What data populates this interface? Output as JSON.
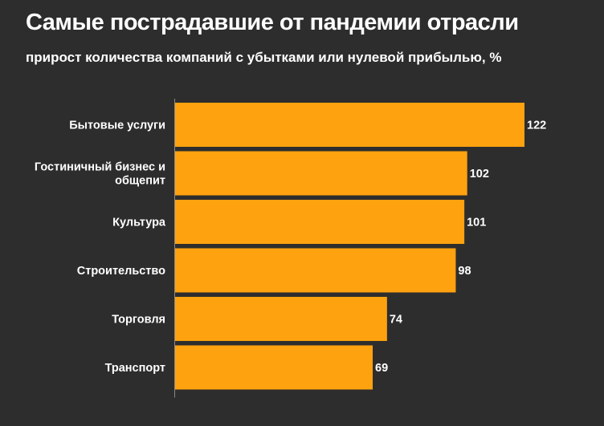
{
  "chart_data": {
    "type": "bar",
    "orientation": "horizontal",
    "title": "Самые пострадавшие от пандемии отрасли",
    "subtitle": "прирост количества компаний с убытками или нулевой прибылью, %",
    "categories": [
      [
        "Бытовые услуги"
      ],
      [
        "Гостиничный бизнес и",
        "общепит"
      ],
      [
        "Культура"
      ],
      [
        "Строительство"
      ],
      [
        "Торговля"
      ],
      [
        "Транспорт"
      ]
    ],
    "values": [
      122,
      102,
      101,
      98,
      74,
      69
    ],
    "value_labels": [
      "122",
      "102",
      "101",
      "98",
      "74",
      "69"
    ],
    "xlim": [
      0,
      122
    ],
    "grid": false,
    "bar_color": "#ffa20f",
    "axis_color": "#8a8a8a"
  }
}
